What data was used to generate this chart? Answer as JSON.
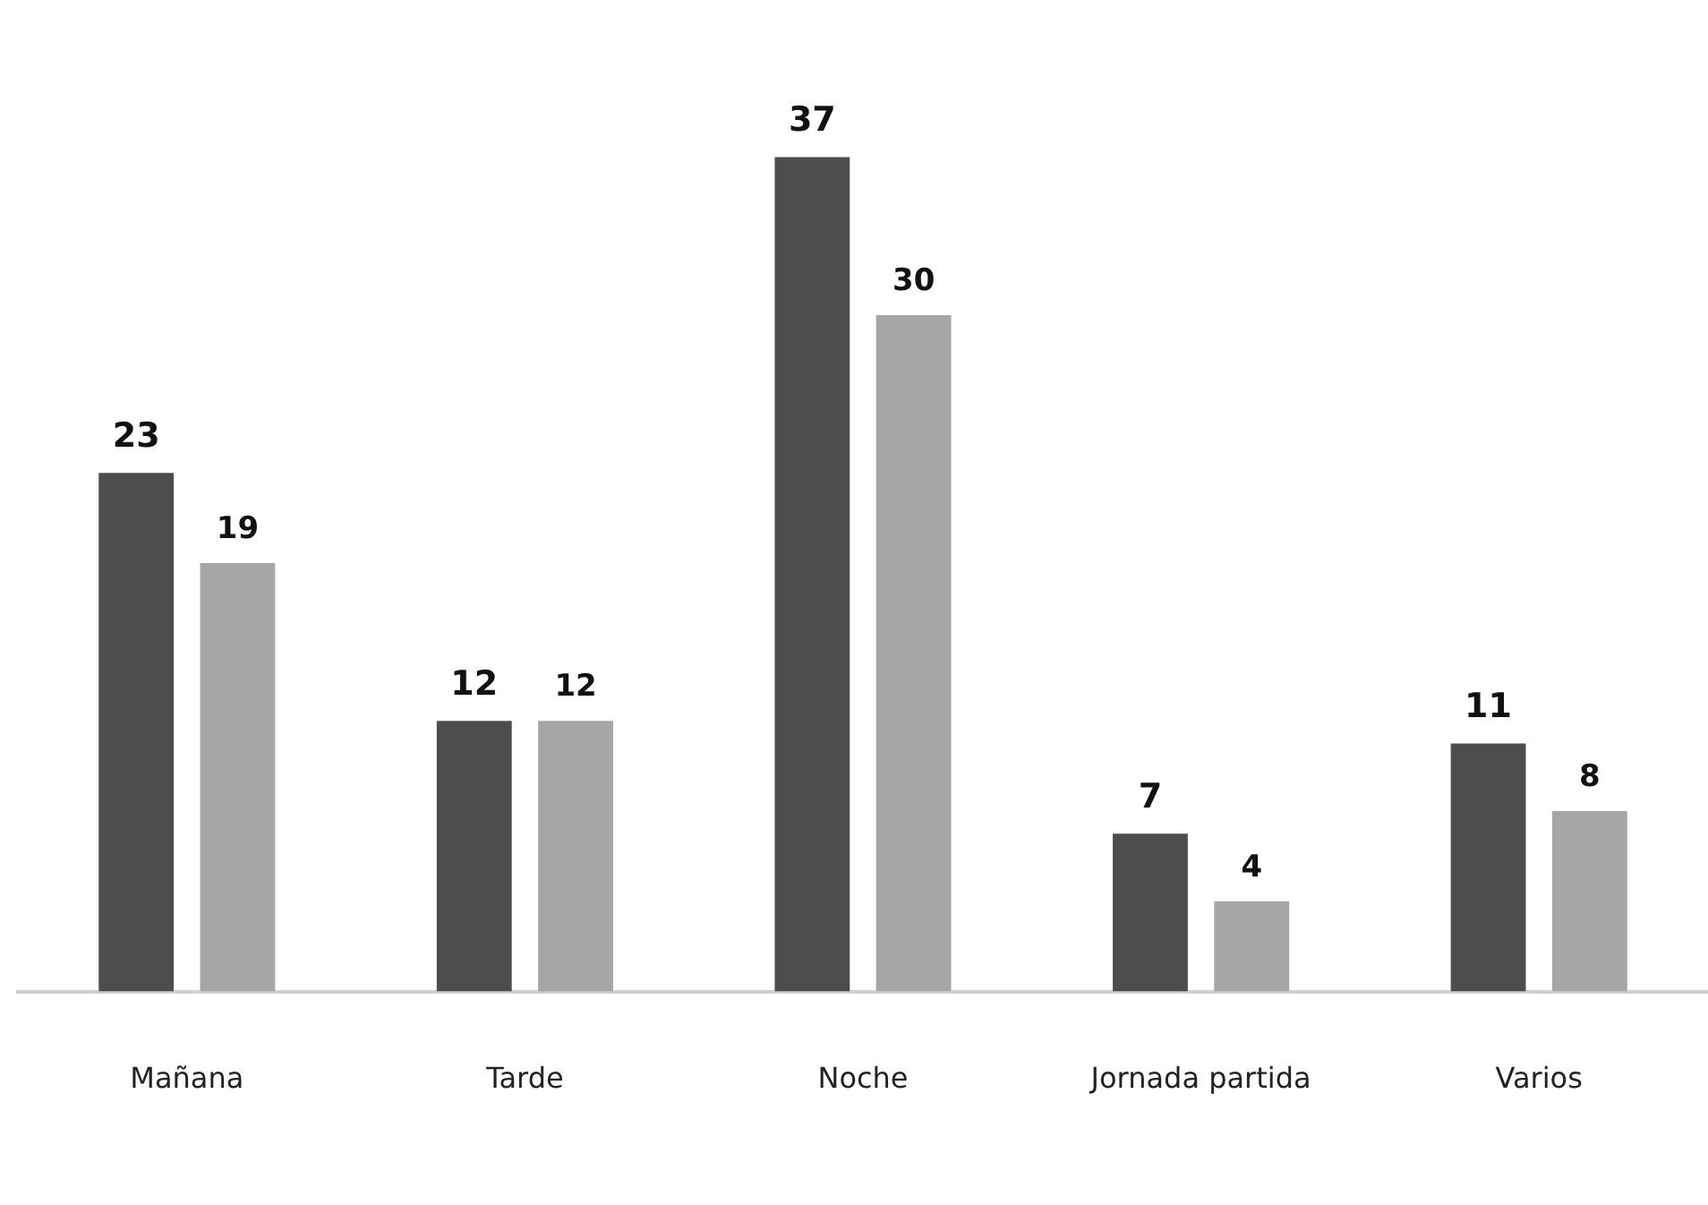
{
  "chart_data": {
    "type": "bar",
    "categories": [
      "Mañana",
      "Tarde",
      "Noche",
      "Jornada partida",
      "Varios"
    ],
    "series": [
      {
        "color": "#4d4d4d",
        "values": [
          23,
          12,
          37,
          7,
          11
        ]
      },
      {
        "color": "#a6a6a6",
        "values": [
          19,
          12,
          30,
          4,
          8
        ]
      }
    ],
    "tick_labels": "x",
    "data_labels": true,
    "grid": false,
    "legend": false
  }
}
